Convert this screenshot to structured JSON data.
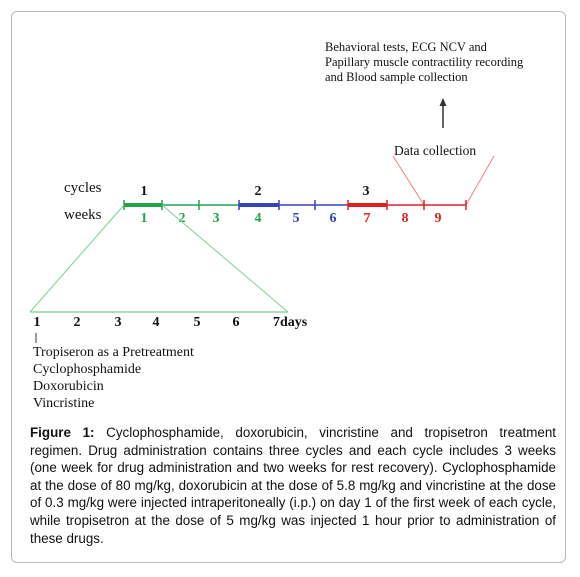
{
  "diagram": {
    "top_note": [
      "Behavioral  tests, ECG  NCV  and",
      "Papillary muscle contractility recording",
      "and Blood sample  collection"
    ],
    "data_collection_label": "Data  collection",
    "cycles_label": "cycles",
    "weeks_label": "weeks",
    "cycle_numbers": [
      "1",
      "2",
      "3"
    ],
    "week_numbers": [
      "1",
      "2",
      "3",
      "4",
      "5",
      "6",
      "7",
      "8",
      "9"
    ],
    "day_numbers": [
      "1",
      "2",
      "3",
      "4",
      "5",
      "6",
      "7days"
    ],
    "treatments": [
      "Tropiseron as a Pretreatment",
      "Cyclophosphamide",
      "Doxorubicin",
      "Vincristine"
    ],
    "colors": {
      "cycle1": "#22a34a",
      "cycle2": "#3344bb",
      "cycle3": "#e02020",
      "wk1": "#22a34a",
      "wk2": "#22a34a",
      "wk3": "#22a34a",
      "wk4": "#3344bb",
      "wk5": "#3344bb",
      "wk6": "#3344bb",
      "wk7": "#e02020",
      "wk8": "#e02020",
      "wk9": "#e02020",
      "zoom_lines": "#7fcf8f",
      "data_lines": "#f08080"
    }
  },
  "caption": {
    "label": "Figure 1:",
    "text": " Cyclophosphamide, doxorubicin, vincristine and tropisetron treatment regimen. Drug administration contains three cycles and each cycle includes 3 weeks (one week for drug administration and two weeks for rest recovery). Cyclophosphamide at the dose of 80 mg/kg, doxorubicin at the dose of 5.8 mg/kg and vincristine at the dose of 0.3 mg/kg were injected intraperitoneally (i.p.) on day 1 of the first week of each cycle, while tropisetron at the dose of 5 mg/kg was injected 1 hour prior to administration of these drugs."
  }
}
